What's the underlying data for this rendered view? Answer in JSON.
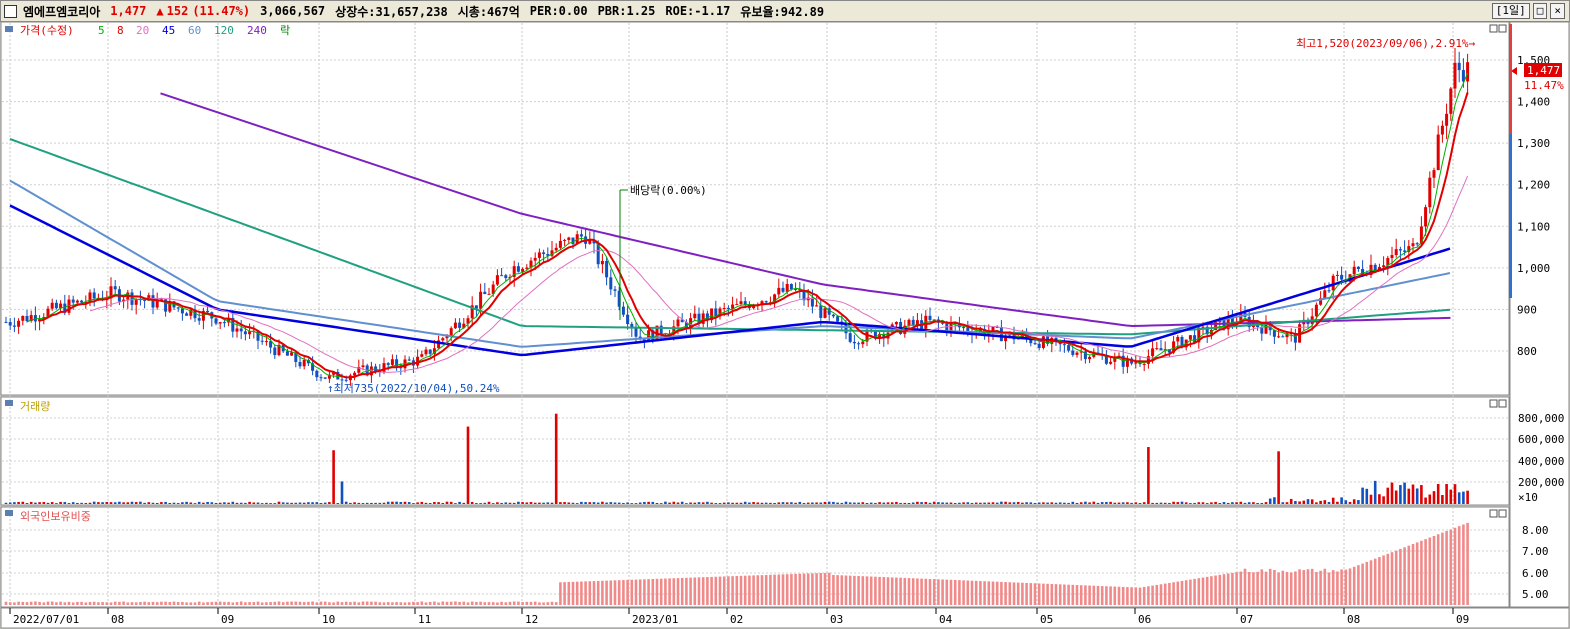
{
  "header": {
    "name": "엠에프엠코리아",
    "price": "1,477",
    "change_arrow": "▲",
    "change": "152",
    "change_pct": "(11.47%)",
    "volume": "3,066,567",
    "shares": "상장수:31,657,238",
    "mktcap": "시총:467억",
    "per": "PER:0.00",
    "pbr": "PBR:1.25",
    "roe": "ROE:-1.17",
    "float": "유보율:942.89",
    "period_btn": "[1일]"
  },
  "price_legend": {
    "price_label": "가격(수정)",
    "ma": [
      {
        "label": "5",
        "color": "#00b000"
      },
      {
        "label": "8",
        "color": "#e00000"
      },
      {
        "label": "20",
        "color": "#e070c0"
      },
      {
        "label": "45",
        "color": "#0000e0"
      },
      {
        "label": "60",
        "color": "#6090d0"
      },
      {
        "label": "120",
        "color": "#20a080"
      },
      {
        "label": "240",
        "color": "#8020c0"
      }
    ],
    "event_label": "락"
  },
  "volume_legend": {
    "label": "거래량"
  },
  "foreign_legend": {
    "label": "외국인보유비중"
  },
  "annotations": {
    "high": "최고1,520(2023/09/06),2.91%",
    "low": "최저735(2022/10/04),50.24%",
    "dividend": "배당락(0.00%)",
    "price_tag": "1,477",
    "price_tag_pct": "11.47%"
  },
  "x_labels": [
    "2022/07/01",
    "08",
    "09",
    "10",
    "11",
    "12",
    "2023/01",
    "02",
    "03",
    "04",
    "05",
    "06",
    "07",
    "08",
    "09"
  ],
  "price_axis": [
    "1,500",
    "1,400",
    "1,300",
    "1,200",
    "1,100",
    "1,000",
    "900",
    "800"
  ],
  "volume_axis": [
    "800,000",
    "600,000",
    "400,000",
    "200,000",
    "×10"
  ],
  "foreign_axis": [
    "8.00",
    "7.00",
    "6.00",
    "5.00"
  ],
  "chart_data": {
    "type": "line",
    "title": "엠에프엠코리아",
    "x_range": [
      "2022/07/01",
      "2023/09/06"
    ],
    "series": [
      {
        "name": "가격(수정)",
        "points": [
          [
            "2022/07/01",
            870
          ],
          [
            "2022/08/01",
            940
          ],
          [
            "2022/09/01",
            880
          ],
          [
            "2022/10/04",
            735
          ],
          [
            "2022/11/01",
            780
          ],
          [
            "2022/11/28",
            1000
          ],
          [
            "2022/12/20",
            1080
          ],
          [
            "2023/01/05",
            830
          ],
          [
            "2023/02/01",
            900
          ],
          [
            "2023/02/20",
            950
          ],
          [
            "2023/03/10",
            830
          ],
          [
            "2023/04/01",
            870
          ],
          [
            "2023/05/01",
            830
          ],
          [
            "2023/06/01",
            770
          ],
          [
            "2023/07/03",
            880
          ],
          [
            "2023/07/20",
            830
          ],
          [
            "2023/08/01",
            970
          ],
          [
            "2023/08/25",
            1050
          ],
          [
            "2023/09/06",
            1477
          ]
        ]
      },
      {
        "name": "240",
        "points": [
          [
            "2022/08/15",
            1420
          ],
          [
            "2022/12/01",
            1130
          ],
          [
            "2023/03/01",
            960
          ],
          [
            "2023/06/01",
            860
          ],
          [
            "2023/09/06",
            880
          ]
        ]
      },
      {
        "name": "120",
        "points": [
          [
            "2022/07/01",
            1310
          ],
          [
            "2022/10/01",
            1040
          ],
          [
            "2022/12/01",
            860
          ],
          [
            "2023/03/01",
            850
          ],
          [
            "2023/06/01",
            840
          ],
          [
            "2023/09/06",
            900
          ]
        ]
      },
      {
        "name": "60",
        "points": [
          [
            "2022/07/01",
            1210
          ],
          [
            "2022/09/01",
            920
          ],
          [
            "2022/12/01",
            810
          ],
          [
            "2023/03/01",
            860
          ],
          [
            "2023/06/01",
            830
          ],
          [
            "2023/09/06",
            990
          ]
        ]
      },
      {
        "name": "45",
        "points": [
          [
            "2022/07/01",
            1150
          ],
          [
            "2022/09/01",
            900
          ],
          [
            "2022/12/01",
            790
          ],
          [
            "2023/03/01",
            870
          ],
          [
            "2023/06/01",
            810
          ],
          [
            "2023/09/06",
            1050
          ]
        ]
      }
    ],
    "ylim": [
      700,
      1600
    ]
  }
}
